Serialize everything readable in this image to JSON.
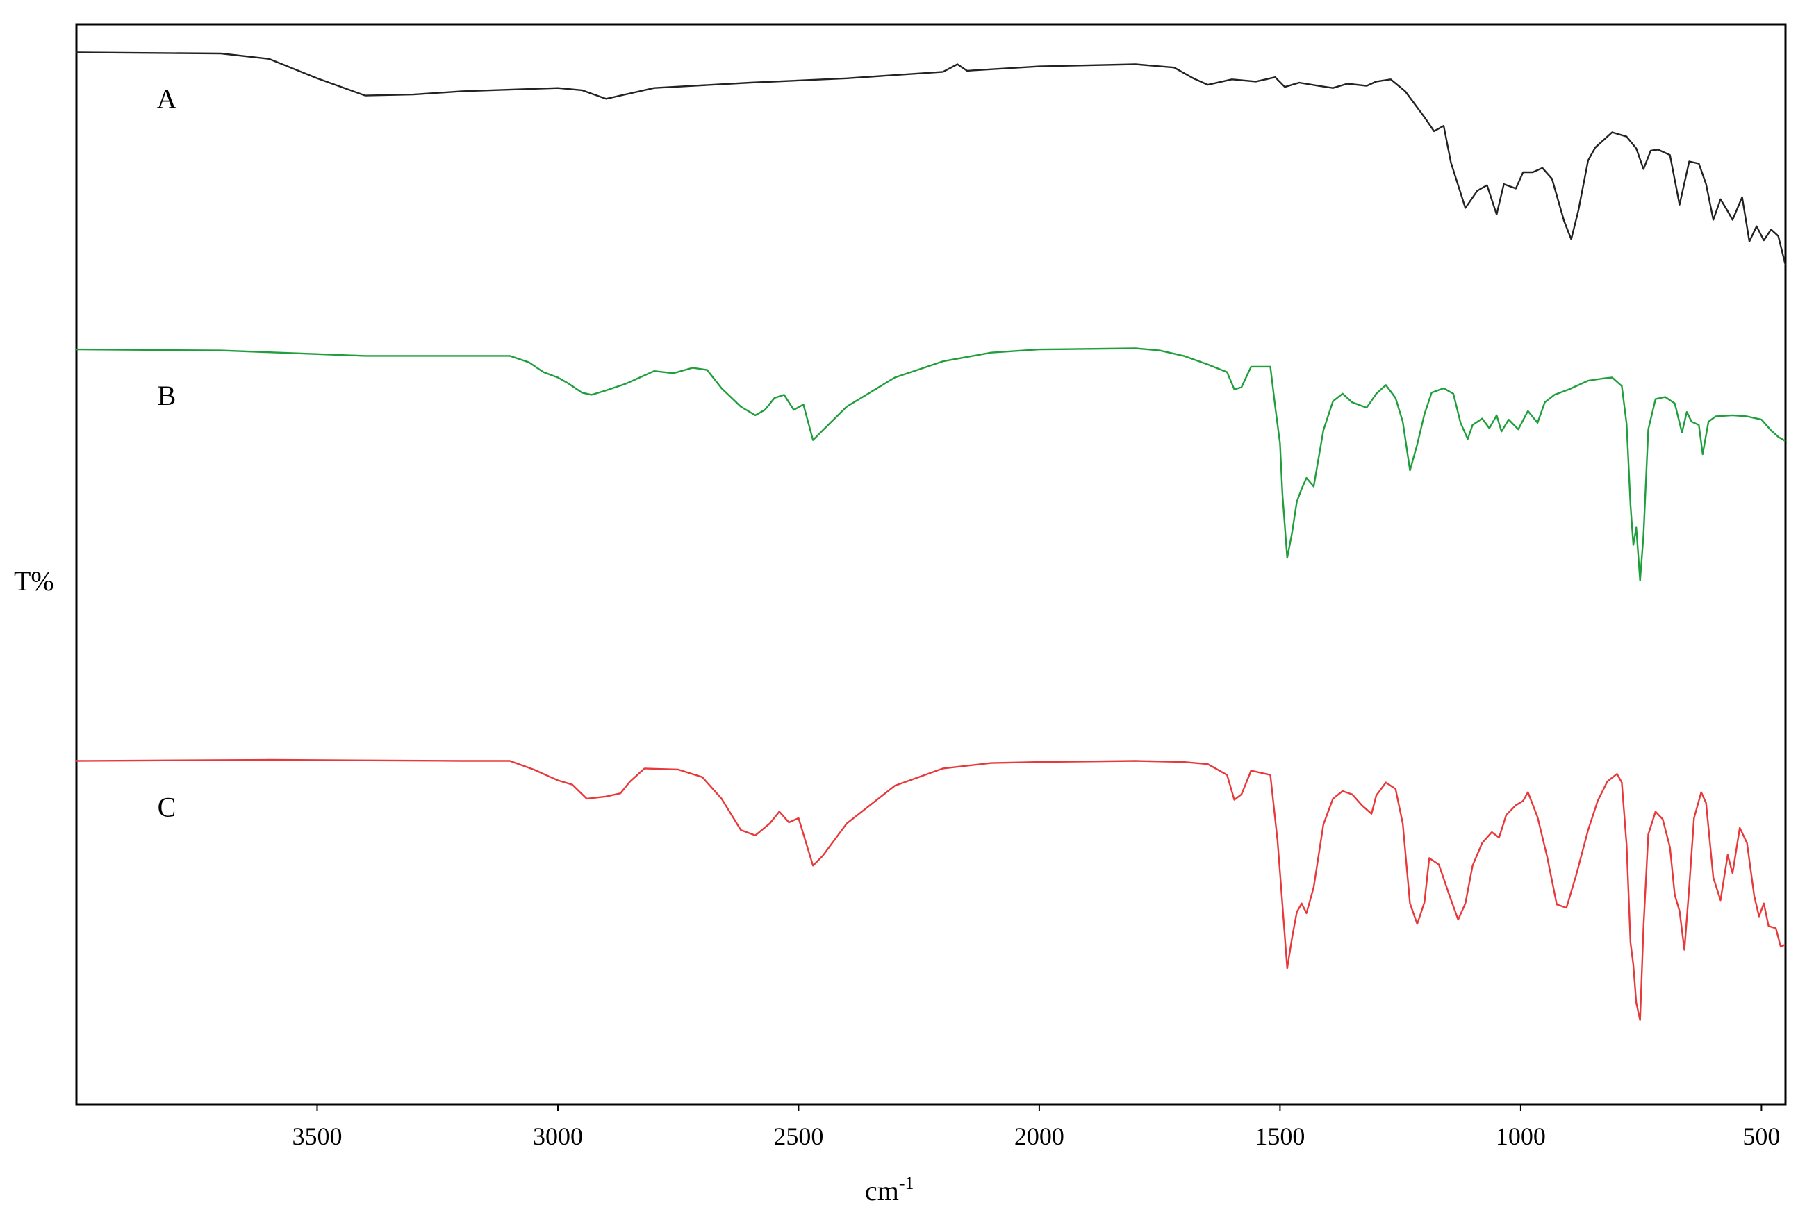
{
  "chart_data": {
    "type": "line",
    "title": "",
    "xlabel": "cm",
    "xlabel_superscript": "-1",
    "ylabel": "T%",
    "xlim": [
      4000,
      450
    ],
    "x_reversed": true,
    "x_ticks": [
      3500,
      3000,
      2500,
      2000,
      1500,
      1000,
      500
    ],
    "y_ticks_shown": false,
    "ylim": [
      0,
      100
    ],
    "grid": false,
    "legend": "none",
    "series": [
      {
        "name": "A",
        "color": "#222222",
        "points": [
          [
            4000,
            97.4
          ],
          [
            3700,
            97.3
          ],
          [
            3600,
            96.8
          ],
          [
            3500,
            95.0
          ],
          [
            3400,
            93.4
          ],
          [
            3300,
            93.5
          ],
          [
            3200,
            93.8
          ],
          [
            3000,
            94.1
          ],
          [
            2950,
            93.9
          ],
          [
            2900,
            93.1
          ],
          [
            2850,
            93.6
          ],
          [
            2800,
            94.1
          ],
          [
            2600,
            94.6
          ],
          [
            2400,
            95.0
          ],
          [
            2200,
            95.6
          ],
          [
            2170,
            96.3
          ],
          [
            2150,
            95.7
          ],
          [
            2000,
            96.1
          ],
          [
            1800,
            96.3
          ],
          [
            1720,
            96.0
          ],
          [
            1680,
            95.0
          ],
          [
            1650,
            94.4
          ],
          [
            1600,
            94.9
          ],
          [
            1550,
            94.7
          ],
          [
            1510,
            95.1
          ],
          [
            1490,
            94.2
          ],
          [
            1460,
            94.6
          ],
          [
            1420,
            94.3
          ],
          [
            1390,
            94.1
          ],
          [
            1360,
            94.5
          ],
          [
            1320,
            94.3
          ],
          [
            1300,
            94.7
          ],
          [
            1270,
            94.9
          ],
          [
            1240,
            93.8
          ],
          [
            1200,
            91.4
          ],
          [
            1180,
            90.1
          ],
          [
            1160,
            90.6
          ],
          [
            1145,
            87.2
          ],
          [
            1115,
            83.0
          ],
          [
            1090,
            84.6
          ],
          [
            1070,
            85.1
          ],
          [
            1050,
            82.4
          ],
          [
            1035,
            85.2
          ],
          [
            1010,
            84.8
          ],
          [
            995,
            86.3
          ],
          [
            975,
            86.3
          ],
          [
            955,
            86.7
          ],
          [
            935,
            85.7
          ],
          [
            910,
            81.8
          ],
          [
            895,
            80.1
          ],
          [
            880,
            82.8
          ],
          [
            860,
            87.4
          ],
          [
            845,
            88.6
          ],
          [
            810,
            90.0
          ],
          [
            780,
            89.6
          ],
          [
            760,
            88.5
          ],
          [
            745,
            86.6
          ],
          [
            730,
            88.3
          ],
          [
            715,
            88.4
          ],
          [
            690,
            87.9
          ],
          [
            670,
            83.3
          ],
          [
            650,
            87.3
          ],
          [
            630,
            87.1
          ],
          [
            615,
            85.2
          ],
          [
            600,
            81.9
          ],
          [
            585,
            83.8
          ],
          [
            570,
            82.7
          ],
          [
            560,
            81.9
          ],
          [
            540,
            84.0
          ],
          [
            525,
            79.9
          ],
          [
            510,
            81.3
          ],
          [
            495,
            80.0
          ],
          [
            480,
            81.0
          ],
          [
            465,
            80.4
          ],
          [
            450,
            77.7
          ]
        ]
      },
      {
        "name": "B",
        "color": "#1f9e3c",
        "points": [
          [
            4000,
            69.9
          ],
          [
            3700,
            69.8
          ],
          [
            3400,
            69.3
          ],
          [
            3300,
            69.3
          ],
          [
            3200,
            69.3
          ],
          [
            3100,
            69.3
          ],
          [
            3060,
            68.7
          ],
          [
            3030,
            67.8
          ],
          [
            3000,
            67.3
          ],
          [
            2980,
            66.8
          ],
          [
            2950,
            65.9
          ],
          [
            2930,
            65.7
          ],
          [
            2900,
            66.1
          ],
          [
            2860,
            66.7
          ],
          [
            2830,
            67.3
          ],
          [
            2800,
            67.9
          ],
          [
            2760,
            67.7
          ],
          [
            2720,
            68.2
          ],
          [
            2690,
            68.0
          ],
          [
            2660,
            66.3
          ],
          [
            2620,
            64.6
          ],
          [
            2590,
            63.8
          ],
          [
            2570,
            64.3
          ],
          [
            2550,
            65.4
          ],
          [
            2530,
            65.7
          ],
          [
            2510,
            64.3
          ],
          [
            2490,
            64.8
          ],
          [
            2470,
            61.5
          ],
          [
            2450,
            62.4
          ],
          [
            2400,
            64.6
          ],
          [
            2300,
            67.3
          ],
          [
            2200,
            68.8
          ],
          [
            2100,
            69.6
          ],
          [
            2000,
            69.9
          ],
          [
            1800,
            70.0
          ],
          [
            1750,
            69.8
          ],
          [
            1700,
            69.3
          ],
          [
            1650,
            68.5
          ],
          [
            1610,
            67.8
          ],
          [
            1595,
            66.2
          ],
          [
            1580,
            66.4
          ],
          [
            1560,
            68.3
          ],
          [
            1520,
            68.3
          ],
          [
            1510,
            64.6
          ],
          [
            1500,
            61.2
          ],
          [
            1495,
            56.5
          ],
          [
            1485,
            50.6
          ],
          [
            1475,
            52.9
          ],
          [
            1465,
            55.8
          ],
          [
            1455,
            57.0
          ],
          [
            1445,
            58.0
          ],
          [
            1430,
            57.2
          ],
          [
            1410,
            62.4
          ],
          [
            1390,
            65.1
          ],
          [
            1370,
            65.8
          ],
          [
            1350,
            65.0
          ],
          [
            1320,
            64.5
          ],
          [
            1300,
            65.8
          ],
          [
            1280,
            66.6
          ],
          [
            1260,
            65.4
          ],
          [
            1245,
            63.2
          ],
          [
            1230,
            58.7
          ],
          [
            1215,
            61.1
          ],
          [
            1200,
            63.9
          ],
          [
            1185,
            65.9
          ],
          [
            1160,
            66.3
          ],
          [
            1140,
            65.8
          ],
          [
            1125,
            63.1
          ],
          [
            1110,
            61.6
          ],
          [
            1100,
            62.9
          ],
          [
            1080,
            63.5
          ],
          [
            1065,
            62.6
          ],
          [
            1050,
            63.8
          ],
          [
            1040,
            62.3
          ],
          [
            1025,
            63.4
          ],
          [
            1005,
            62.5
          ],
          [
            985,
            64.2
          ],
          [
            965,
            63.1
          ],
          [
            950,
            65.0
          ],
          [
            930,
            65.7
          ],
          [
            900,
            66.2
          ],
          [
            880,
            66.6
          ],
          [
            860,
            67.0
          ],
          [
            830,
            67.2
          ],
          [
            810,
            67.3
          ],
          [
            790,
            66.5
          ],
          [
            780,
            63.0
          ],
          [
            772,
            55.5
          ],
          [
            766,
            51.8
          ],
          [
            760,
            53.4
          ],
          [
            752,
            48.5
          ],
          [
            745,
            52.7
          ],
          [
            735,
            62.5
          ],
          [
            720,
            65.3
          ],
          [
            700,
            65.5
          ],
          [
            680,
            64.9
          ],
          [
            665,
            62.2
          ],
          [
            655,
            64.1
          ],
          [
            645,
            63.2
          ],
          [
            630,
            62.9
          ],
          [
            622,
            60.2
          ],
          [
            610,
            63.2
          ],
          [
            595,
            63.7
          ],
          [
            560,
            63.8
          ],
          [
            530,
            63.7
          ],
          [
            500,
            63.4
          ],
          [
            480,
            62.4
          ],
          [
            465,
            61.8
          ],
          [
            450,
            61.4
          ]
        ]
      },
      {
        "name": "C",
        "color": "#e8383a",
        "points": [
          [
            4000,
            31.8
          ],
          [
            3600,
            31.9
          ],
          [
            3200,
            31.8
          ],
          [
            3100,
            31.8
          ],
          [
            3050,
            31.0
          ],
          [
            3020,
            30.4
          ],
          [
            3000,
            30.0
          ],
          [
            2970,
            29.6
          ],
          [
            2940,
            28.3
          ],
          [
            2900,
            28.5
          ],
          [
            2870,
            28.8
          ],
          [
            2850,
            29.9
          ],
          [
            2820,
            31.1
          ],
          [
            2750,
            31.0
          ],
          [
            2700,
            30.3
          ],
          [
            2660,
            28.3
          ],
          [
            2620,
            25.4
          ],
          [
            2590,
            24.9
          ],
          [
            2560,
            26.0
          ],
          [
            2540,
            27.1
          ],
          [
            2520,
            26.1
          ],
          [
            2500,
            26.5
          ],
          [
            2470,
            22.1
          ],
          [
            2450,
            23.0
          ],
          [
            2400,
            26.0
          ],
          [
            2300,
            29.5
          ],
          [
            2200,
            31.1
          ],
          [
            2100,
            31.6
          ],
          [
            2000,
            31.7
          ],
          [
            1800,
            31.8
          ],
          [
            1700,
            31.7
          ],
          [
            1650,
            31.5
          ],
          [
            1610,
            30.5
          ],
          [
            1595,
            28.2
          ],
          [
            1580,
            28.7
          ],
          [
            1560,
            30.9
          ],
          [
            1520,
            30.5
          ],
          [
            1505,
            24.4
          ],
          [
            1495,
            18.5
          ],
          [
            1485,
            12.6
          ],
          [
            1475,
            15.4
          ],
          [
            1465,
            17.8
          ],
          [
            1455,
            18.6
          ],
          [
            1445,
            17.7
          ],
          [
            1430,
            20.1
          ],
          [
            1410,
            25.9
          ],
          [
            1390,
            28.3
          ],
          [
            1370,
            29.0
          ],
          [
            1350,
            28.7
          ],
          [
            1330,
            27.7
          ],
          [
            1310,
            26.9
          ],
          [
            1300,
            28.6
          ],
          [
            1280,
            29.8
          ],
          [
            1260,
            29.2
          ],
          [
            1245,
            26.0
          ],
          [
            1230,
            18.6
          ],
          [
            1215,
            16.7
          ],
          [
            1200,
            18.7
          ],
          [
            1190,
            22.8
          ],
          [
            1170,
            22.2
          ],
          [
            1150,
            19.6
          ],
          [
            1130,
            17.1
          ],
          [
            1115,
            18.6
          ],
          [
            1100,
            22.1
          ],
          [
            1080,
            24.2
          ],
          [
            1060,
            25.2
          ],
          [
            1045,
            24.7
          ],
          [
            1030,
            26.8
          ],
          [
            1010,
            27.7
          ],
          [
            995,
            28.1
          ],
          [
            985,
            28.9
          ],
          [
            965,
            26.6
          ],
          [
            945,
            22.9
          ],
          [
            925,
            18.5
          ],
          [
            905,
            18.2
          ],
          [
            885,
            21.2
          ],
          [
            860,
            25.4
          ],
          [
            840,
            28.1
          ],
          [
            820,
            29.9
          ],
          [
            800,
            30.6
          ],
          [
            790,
            29.8
          ],
          [
            780,
            24.0
          ],
          [
            772,
            15.0
          ],
          [
            766,
            12.9
          ],
          [
            760,
            9.4
          ],
          [
            752,
            7.8
          ],
          [
            745,
            16.4
          ],
          [
            735,
            25.0
          ],
          [
            720,
            27.1
          ],
          [
            705,
            26.4
          ],
          [
            690,
            23.8
          ],
          [
            680,
            19.4
          ],
          [
            670,
            17.9
          ],
          [
            660,
            14.3
          ],
          [
            650,
            20.1
          ],
          [
            640,
            26.5
          ],
          [
            625,
            28.9
          ],
          [
            615,
            27.9
          ],
          [
            600,
            21.0
          ],
          [
            585,
            18.9
          ],
          [
            570,
            23.1
          ],
          [
            560,
            21.4
          ],
          [
            545,
            25.6
          ],
          [
            530,
            24.2
          ],
          [
            515,
            19.3
          ],
          [
            505,
            17.4
          ],
          [
            495,
            18.6
          ],
          [
            485,
            16.5
          ],
          [
            470,
            16.3
          ],
          [
            460,
            14.6
          ],
          [
            450,
            14.8
          ]
        ]
      }
    ]
  }
}
